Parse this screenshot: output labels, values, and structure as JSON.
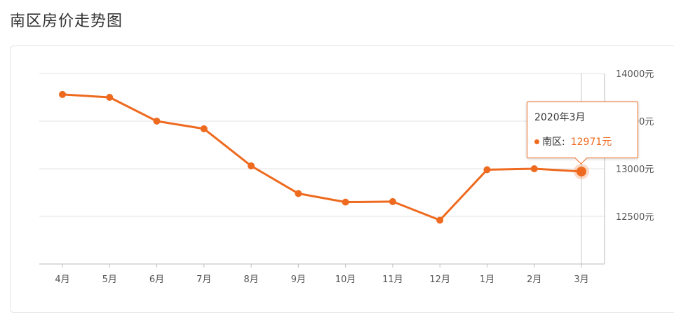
{
  "page": {
    "title": "南区房价走势图"
  },
  "colors": {
    "series": "#ee6a1f",
    "grid": "#e3e3e3",
    "axis": "#bbbbbb",
    "text": "#555555"
  },
  "chart_data": {
    "type": "line",
    "title": "南区房价走势图",
    "x": [
      "4月",
      "5月",
      "6月",
      "7月",
      "8月",
      "9月",
      "10月",
      "11月",
      "12月",
      "1月",
      "2月",
      "3月"
    ],
    "series": [
      {
        "name": "南区",
        "values": [
          13780,
          13750,
          13500,
          13420,
          13030,
          12740,
          12650,
          12655,
          12460,
          12990,
          13000,
          12971
        ]
      }
    ],
    "ylim": [
      12000,
      14000
    ],
    "yticks": [
      {
        "value": 12500,
        "label": "12500元"
      },
      {
        "value": 13000,
        "label": "13000元"
      },
      {
        "value": 13500,
        "label": "13500元"
      },
      {
        "value": 14000,
        "label": "14000元"
      }
    ],
    "y_axis_position": "right",
    "grid": true,
    "highlight_index": 11
  },
  "tooltip": {
    "title": "2020年3月",
    "series_label": "南区:",
    "value": "12971元"
  }
}
